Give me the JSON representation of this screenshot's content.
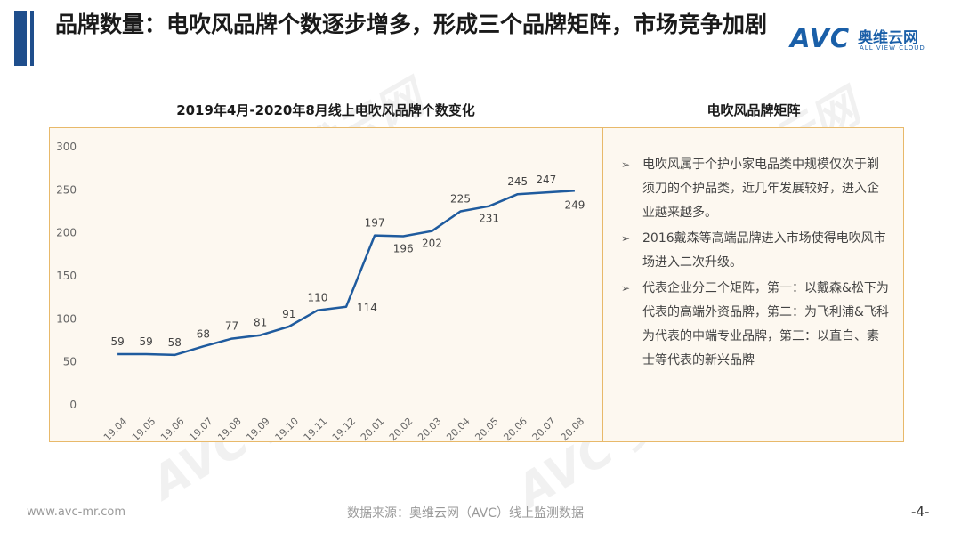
{
  "header": {
    "title": "品牌数量：电吹风品牌个数逐步增多，形成三个品牌矩阵，市场竞争加剧",
    "logo_avc": "AVC",
    "logo_cn": "奥维云网",
    "logo_en": "ALL VIEW CLOUD"
  },
  "left_panel": {
    "title": "2019年4月-2020年8月线上电吹风品牌个数变化"
  },
  "right_panel": {
    "title": "电吹风品牌矩阵",
    "bullets": [
      "电吹风属于个护小家电品类中规模仅次于剃须刀的个护品类，近几年发展较好，进入企业越来越多。",
      "2016戴森等高端品牌进入市场使得电吹风市场进入二次升级。",
      "代表企业分三个矩阵，第一：以戴森&松下为代表的高端外资品牌，第二：为飞利浦&飞科为代表的中端专业品牌，第三：以直白、素士等代表的新兴品牌"
    ]
  },
  "footer": {
    "url": "www.avc-mr.com",
    "source": "数据来源：奥维云网（AVC）线上监测数据",
    "page": "-4-"
  },
  "colors": {
    "line": "#1f5b9e",
    "border": "#e8b96a",
    "panel_bg": "#fdf8f0",
    "accent": "#1f4e8c"
  },
  "chart_data": {
    "type": "line",
    "title": "2019年4月-2020年8月线上电吹风品牌个数变化",
    "categories": [
      "19.04",
      "19.05",
      "19.06",
      "19.07",
      "19.08",
      "19.09",
      "19.10",
      "19.11",
      "19.12",
      "20.01",
      "20.02",
      "20.03",
      "20.04",
      "20.05",
      "20.06",
      "20.07",
      "20.08"
    ],
    "values": [
      59,
      59,
      58,
      68,
      77,
      81,
      91,
      110,
      114,
      197,
      196,
      202,
      225,
      231,
      245,
      247,
      249
    ],
    "ylim": [
      0,
      300
    ],
    "yticks": [
      0,
      50,
      100,
      150,
      200,
      250,
      300
    ],
    "grid": false,
    "legend": "none"
  }
}
